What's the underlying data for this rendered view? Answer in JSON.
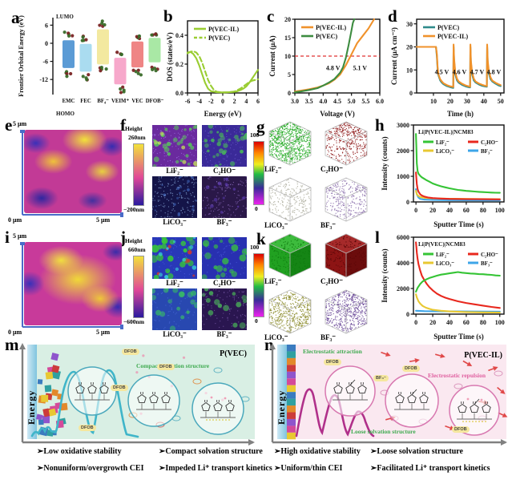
{
  "panel_labels": [
    "a",
    "b",
    "c",
    "d",
    "e",
    "f",
    "g",
    "h",
    "i",
    "j",
    "k",
    "l",
    "m",
    "n"
  ],
  "chart_data": [
    {
      "panel": "a",
      "type": "bar",
      "ylabel": "Frontier Orbital Energy (eV)",
      "top_label": "LUMO",
      "bottom_label": "HOMO",
      "categories": [
        "EMC",
        "FEC",
        "BF₄⁻",
        "VEIM⁺",
        "VEC",
        "DFOB⁻"
      ],
      "lumo": [
        1.0,
        -0.2,
        4.6,
        -4.8,
        0.6,
        1.8
      ],
      "homo": [
        -8.2,
        -9.4,
        -7.0,
        -13.6,
        -8.0,
        -6.3
      ],
      "bar_colors": [
        "#5b9bd5",
        "#aadcf0",
        "#f3e9a0",
        "#f7a8cb",
        "#ef8585",
        "#a9e8a5"
      ],
      "yticks": [
        6,
        0,
        -6,
        -12
      ],
      "ylim": [
        -17,
        8.5
      ]
    },
    {
      "panel": "b",
      "type": "line",
      "xlabel": "Energy (eV)",
      "ylabel": "DOS (states/eV)",
      "xlim": [
        -6,
        6
      ],
      "ylim": [
        0,
        0.5
      ],
      "xticks": [
        -6,
        -4,
        -2,
        0,
        2,
        4,
        6
      ],
      "yticks": [
        0.0,
        0.2,
        0.4
      ],
      "xdec": 0,
      "ydec": 1,
      "series": [
        {
          "name": "P(VEC-IL)",
          "color": "#9acd32",
          "dash": false,
          "x": [
            -6,
            -5.5,
            -5,
            -4.5,
            -4,
            -3.5,
            -3,
            -2.5,
            -2,
            -1,
            0,
            1,
            2,
            2.5,
            3,
            3.5,
            4,
            4.5,
            5,
            5.5,
            6
          ],
          "y": [
            0.28,
            0.285,
            0.27,
            0.24,
            0.19,
            0.13,
            0.07,
            0.03,
            0.012,
            0.005,
            0.004,
            0.005,
            0.008,
            0.012,
            0.02,
            0.03,
            0.045,
            0.07,
            0.1,
            0.13,
            0.16
          ]
        },
        {
          "name": "P(VEC)",
          "color": "#9acd32",
          "dash": true,
          "x": [
            -6,
            -5.5,
            -5,
            -4.5,
            -4,
            -3.5,
            -3,
            -2.5,
            -2,
            -1.5,
            -1,
            0,
            1,
            2,
            3,
            3.5,
            4,
            4.5,
            5,
            5.5,
            6
          ],
          "y": [
            0.275,
            0.285,
            0.29,
            0.28,
            0.255,
            0.21,
            0.15,
            0.09,
            0.05,
            0.02,
            0.008,
            0.004,
            0.005,
            0.01,
            0.03,
            0.045,
            0.06,
            0.075,
            0.085,
            0.09,
            0.095
          ]
        }
      ]
    },
    {
      "panel": "c",
      "type": "line",
      "xlabel": "Voltage (V)",
      "ylabel": "Current (μA)",
      "xlim": [
        3.0,
        6.0
      ],
      "ylim": [
        0,
        20
      ],
      "xticks": [
        3.0,
        3.5,
        4.0,
        4.5,
        5.0,
        5.5,
        6.0
      ],
      "yticks": [
        0,
        5,
        10,
        15,
        20
      ],
      "xdec": 1,
      "ydec": 0,
      "series": [
        {
          "name": "P(VEC-IL)",
          "color": "#f0922b",
          "x": [
            3.0,
            3.2,
            3.5,
            3.8,
            4.0,
            4.2,
            4.4,
            4.6,
            4.8,
            4.9,
            5.0,
            5.1,
            5.2,
            5.4,
            5.6,
            5.8
          ],
          "y": [
            0.4,
            0.6,
            1.0,
            1.5,
            2.0,
            2.6,
            3.6,
            5.0,
            7.5,
            9.0,
            10.5,
            12.0,
            13.5,
            15.5,
            17.5,
            20.0
          ]
        },
        {
          "name": "P(VEC)",
          "color": "#3d8c40",
          "x": [
            3.0,
            3.2,
            3.5,
            3.8,
            4.0,
            4.2,
            4.4,
            4.6,
            4.7,
            4.8,
            4.9,
            5.0,
            5.05,
            5.1
          ],
          "y": [
            0.2,
            0.4,
            0.8,
            1.3,
            2.0,
            2.8,
            3.8,
            5.5,
            7.0,
            9.5,
            13.0,
            17.0,
            19.0,
            20.0
          ]
        }
      ],
      "hline": {
        "y": 10,
        "color": "#e03030"
      },
      "annotations": [
        {
          "text": "4.8 V",
          "color": "#3d8c40",
          "x": 4.35,
          "y": 6.2
        },
        {
          "text": "5.1 V",
          "color": "#f0922b",
          "x": 5.3,
          "y": 6.2
        }
      ]
    },
    {
      "panel": "d",
      "type": "line",
      "xlabel": "Time (h)",
      "ylabel": "Current (μA cm⁻²)",
      "xlim": [
        0,
        52
      ],
      "ylim": [
        0,
        32
      ],
      "xticks": [
        10,
        20,
        30,
        40,
        50
      ],
      "yticks": [
        0,
        10,
        20,
        30
      ],
      "xdec": 0,
      "ydec": 0,
      "series": [
        {
          "name": "P(VEC)",
          "color": "#2e8b8b",
          "x": [
            0,
            11.5,
            12,
            12.5,
            13,
            14,
            15,
            16,
            18,
            20,
            21.8,
            22,
            22.3,
            23,
            24,
            25,
            27,
            29,
            31,
            31.8,
            32,
            32.3,
            33,
            34,
            35,
            37,
            39,
            41,
            41.8,
            42,
            42.3,
            43,
            44,
            45,
            47,
            49,
            50
          ],
          "y": [
            20,
            20,
            16,
            10,
            7.5,
            5.5,
            4.5,
            3.8,
            3.0,
            2.5,
            2.2,
            20,
            14,
            8,
            5.5,
            4.5,
            3.5,
            2.9,
            2.5,
            2.4,
            20,
            13,
            8,
            5.5,
            4.6,
            3.7,
            3.1,
            2.8,
            2.7,
            20,
            13,
            8.5,
            6,
            5,
            4,
            3.2,
            3.0
          ]
        },
        {
          "name": "P(VEC-IL)",
          "color": "#f0922b",
          "x": [
            0,
            11.5,
            12,
            12.5,
            13,
            14,
            15,
            16,
            18,
            20,
            21.8,
            22,
            22.3,
            23,
            24,
            25,
            27,
            29,
            31,
            31.8,
            32,
            32.3,
            33,
            34,
            35,
            37,
            39,
            41,
            41.8,
            42,
            42.3,
            43,
            44,
            45,
            47,
            49,
            50
          ],
          "y": [
            20,
            20,
            17,
            11,
            8,
            6,
            5,
            4.2,
            3.4,
            2.9,
            2.6,
            21,
            15,
            9,
            6.2,
            5,
            4,
            3.3,
            2.9,
            2.7,
            21,
            14,
            9,
            6.2,
            5,
            4.1,
            3.5,
            3.1,
            3.0,
            21,
            14,
            9.5,
            6.8,
            5.4,
            4.4,
            3.7,
            3.4
          ]
        }
      ],
      "annotations": [
        {
          "text": "4.5 V",
          "color": "#1a1a3a",
          "x": 15,
          "y": 8.2
        },
        {
          "text": "4.6 V",
          "color": "#1a1a3a",
          "x": 25.5,
          "y": 8.2
        },
        {
          "text": "4.7 V",
          "color": "#1a1a3a",
          "x": 36,
          "y": 8.2
        },
        {
          "text": "4.8 V",
          "color": "#1a1a3a",
          "x": 46,
          "y": 8.2
        }
      ]
    },
    {
      "panel": "h",
      "type": "line",
      "title": "Li|P(VEC-IL)|NCM83",
      "xlabel": "Sputter Time (s)",
      "ylabel": "Intensity (counts)",
      "xlim": [
        -3,
        105
      ],
      "ylim": [
        0,
        3000
      ],
      "xticks": [
        0,
        20,
        40,
        60,
        80,
        100
      ],
      "yticks": [
        0,
        1000,
        2000,
        3000
      ],
      "xdec": 0,
      "ydec": 0,
      "legend_grid": true,
      "draw_order": [
        3,
        2,
        1,
        0
      ],
      "series": [
        {
          "name": "LiF₂⁻",
          "color": "#35c435",
          "x": [
            0,
            0.5,
            1,
            2,
            3,
            5,
            7,
            10,
            13,
            16,
            20,
            25,
            30,
            35,
            40,
            45,
            50,
            55,
            60,
            65,
            70,
            75,
            80,
            85,
            90,
            95,
            100
          ],
          "y": [
            2650,
            2100,
            1500,
            1200,
            1100,
            1020,
            960,
            900,
            840,
            790,
            720,
            660,
            610,
            570,
            530,
            500,
            470,
            450,
            430,
            420,
            405,
            395,
            385,
            375,
            365,
            360,
            355
          ]
        },
        {
          "name": "C₂HO⁻",
          "color": "#e8281e",
          "x": [
            0,
            0.5,
            1,
            2,
            3,
            5,
            7,
            10,
            15,
            20,
            30,
            40,
            60,
            80,
            100
          ],
          "y": [
            1150,
            900,
            700,
            500,
            400,
            300,
            250,
            210,
            170,
            150,
            130,
            120,
            110,
            105,
            100
          ]
        },
        {
          "name": "LiCO₃⁻",
          "color": "#e8c832",
          "x": [
            0,
            1,
            3,
            5,
            10,
            20,
            40,
            60,
            80,
            100
          ],
          "y": [
            430,
            300,
            230,
            195,
            160,
            140,
            125,
            118,
            113,
            110
          ]
        },
        {
          "name": "BF₃⁻",
          "color": "#3da5e8",
          "x": [
            0,
            1,
            3,
            5,
            10,
            20,
            40,
            60,
            80,
            100
          ],
          "y": [
            500,
            300,
            170,
            120,
            90,
            78,
            68,
            63,
            60,
            58
          ]
        }
      ]
    },
    {
      "panel": "l",
      "type": "line",
      "title": "Li|P(VEC)|NCM83",
      "xlabel": "Sputter Time (s)",
      "ylabel": "Intensity (counts)",
      "xlim": [
        -3,
        105
      ],
      "ylim": [
        0,
        6000
      ],
      "xticks": [
        0,
        20,
        40,
        60,
        80,
        100
      ],
      "yticks": [
        0,
        2000,
        4000,
        6000
      ],
      "xdec": 0,
      "ydec": 0,
      "legend_grid": true,
      "draw_order": [
        3,
        2,
        1,
        0
      ],
      "series": [
        {
          "name": "LiF₂⁻",
          "color": "#35c435",
          "x": [
            0,
            2,
            5,
            8,
            12,
            16,
            20,
            25,
            30,
            35,
            40,
            45,
            50,
            55,
            60,
            65,
            70,
            75,
            80,
            85,
            90,
            95,
            100
          ],
          "y": [
            1750,
            2050,
            2350,
            2550,
            2700,
            2820,
            2900,
            3000,
            3080,
            3130,
            3180,
            3230,
            3280,
            3230,
            3200,
            3170,
            3150,
            3120,
            3110,
            3080,
            3060,
            3020,
            3000
          ]
        },
        {
          "name": "C₂HO⁻",
          "color": "#e8281e",
          "x": [
            0,
            0.5,
            1,
            2,
            3,
            5,
            7,
            10,
            13,
            16,
            20,
            25,
            30,
            35,
            40,
            50,
            60,
            70,
            80,
            90,
            100
          ],
          "y": [
            5600,
            5200,
            4800,
            4300,
            3900,
            3400,
            3000,
            2650,
            2350,
            2100,
            1850,
            1600,
            1420,
            1280,
            1180,
            1000,
            870,
            760,
            660,
            560,
            480
          ]
        },
        {
          "name": "LiCO₃⁻",
          "color": "#e8c832",
          "x": [
            0,
            1,
            3,
            5,
            8,
            12,
            16,
            20,
            30,
            40,
            60,
            80,
            100
          ],
          "y": [
            1550,
            1300,
            1000,
            820,
            640,
            500,
            410,
            340,
            260,
            210,
            160,
            140,
            125
          ]
        },
        {
          "name": "BF₃⁻",
          "color": "#3da5e8",
          "x": [
            0,
            10,
            20,
            40,
            60,
            80,
            100
          ],
          "y": [
            260,
            230,
            220,
            210,
            205,
            200,
            195
          ]
        }
      ]
    }
  ],
  "afm_e": {
    "x0": "0 μm",
    "x1": "5 μm",
    "y1": "5 μm",
    "height_label": "Height",
    "cb_top": "260nm",
    "cb_bottom": "−200nm"
  },
  "afm_i": {
    "x0": "0 μm",
    "x1": "5 μm",
    "y1": "5 μm",
    "height_label": "Height",
    "cb_top": "660nm",
    "cb_bottom": "−600nm"
  },
  "sims_f": {
    "labels": [
      "LiF₂⁻",
      "C₂HO⁻",
      "LiCO₃⁻",
      "BF₃⁻"
    ],
    "cb_top": "100",
    "cb_bottom": "0"
  },
  "sims_j": {
    "labels": [
      "LiF₂⁻",
      "C₂HO⁻",
      "LiCO₃⁻",
      "BF₃⁻"
    ],
    "cb_top": "100",
    "cb_bottom": "0"
  },
  "cubes_g": {
    "labels": [
      "LiF₂⁻",
      "C₂HO⁻",
      "LiCO₃⁻",
      "BF₃⁻"
    ]
  },
  "cubes_k": {
    "labels": [
      "LiF₂⁻",
      "C₂HO⁻",
      "LiCO₃⁻",
      "BF₃⁻"
    ]
  },
  "schematic_m": {
    "energy_label": "Energy",
    "title": "P(VEC)",
    "note_compact": "Compact solvation structure",
    "pills": [
      "DFOB",
      "DFOB",
      "DFOB",
      "DFOB"
    ],
    "bullets": [
      "➢Low oxidative stability",
      "➢Nonuniform/overgrowth CEI",
      "➢Compact solvation structure",
      "➢Impeded Li⁺ transport kinetics"
    ]
  },
  "schematic_n": {
    "energy_label": "Energy",
    "title": "P(VEC-IL)",
    "note_attraction": "Electrostatic attraction",
    "note_repulsion": "Electrostatic repulsion",
    "note_loose": "Loose solvation structure",
    "pills": [
      "DFOB",
      "BF₄⁻",
      "DFOB",
      "DFOB"
    ],
    "bullets": [
      "➢High oxidative stability",
      "➢Uniform/thin CEI",
      "➢Loose solvation structure",
      "➢Facilitated Li⁺ transport kinetics"
    ]
  }
}
